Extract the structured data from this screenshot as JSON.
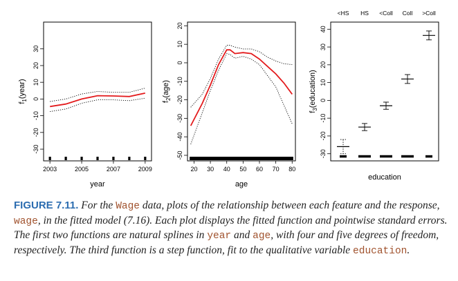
{
  "chart_data": [
    {
      "type": "line",
      "xlabel": "year",
      "ylabel": "f1(year)",
      "ylabel_parts": {
        "pre": "f",
        "sub": "1",
        "post": "(year)"
      },
      "xlim": [
        2002.6,
        2009.4
      ],
      "ylim": [
        -37,
        46
      ],
      "xticks": [
        2003,
        2005,
        2007,
        2009
      ],
      "yticks": [
        -30,
        -20,
        -10,
        0,
        10,
        20,
        30
      ],
      "colors": {
        "fit": "#e31a1c",
        "se": "#000000"
      },
      "series": [
        {
          "role": "fit",
          "x": [
            2003,
            2004,
            2005,
            2006,
            2007,
            2008,
            2009
          ],
          "values": [
            -4.5,
            -3.0,
            0.0,
            2.0,
            1.8,
            1.5,
            3.5
          ]
        },
        {
          "role": "upper-se",
          "x": [
            2003,
            2004,
            2005,
            2006,
            2007,
            2008,
            2009
          ],
          "values": [
            -1.5,
            0.0,
            3.0,
            4.5,
            4.0,
            4.0,
            6.5
          ]
        },
        {
          "role": "lower-se",
          "x": [
            2003,
            2004,
            2005,
            2006,
            2007,
            2008,
            2009
          ],
          "values": [
            -7.5,
            -6.0,
            -2.5,
            -0.5,
            -0.5,
            -1.0,
            0.5
          ]
        }
      ],
      "rug_x": [
        2003,
        2004,
        2005,
        2006,
        2007,
        2008,
        2009
      ]
    },
    {
      "type": "line",
      "xlabel": "age",
      "ylabel": "f2(age)",
      "ylabel_parts": {
        "pre": "f",
        "sub": "2",
        "post": "(age)"
      },
      "xlim": [
        16,
        82
      ],
      "ylim": [
        -53,
        22
      ],
      "xticks": [
        20,
        30,
        40,
        50,
        60,
        70,
        80
      ],
      "yticks": [
        -50,
        -40,
        -30,
        -20,
        -10,
        0,
        10,
        20
      ],
      "colors": {
        "fit": "#e31a1c",
        "se": "#000000"
      },
      "series": [
        {
          "role": "fit",
          "x": [
            18,
            25,
            30,
            35,
            40,
            42,
            45,
            50,
            55,
            60,
            65,
            70,
            75,
            80
          ],
          "values": [
            -34,
            -22,
            -12,
            -1,
            7,
            7,
            5,
            5.5,
            5,
            2,
            -2,
            -6,
            -11,
            -17
          ]
        },
        {
          "role": "upper-se",
          "x": [
            18,
            25,
            30,
            35,
            40,
            42,
            45,
            50,
            55,
            60,
            65,
            70,
            75,
            80
          ],
          "values": [
            -24,
            -17,
            -8.5,
            2,
            9.5,
            9.5,
            8.5,
            7.5,
            7.5,
            6,
            3,
            1,
            -0.5,
            -1
          ]
        },
        {
          "role": "lower-se",
          "x": [
            18,
            25,
            30,
            35,
            40,
            42,
            45,
            50,
            55,
            60,
            65,
            70,
            75,
            80
          ],
          "values": [
            -44,
            -27,
            -15,
            -4,
            5,
            4.5,
            2.5,
            3.5,
            2,
            -1,
            -7,
            -13,
            -23,
            -33
          ]
        }
      ],
      "rug_x": [
        18,
        19,
        20,
        21,
        22,
        23,
        24,
        25,
        26,
        27,
        28,
        29,
        30,
        31,
        32,
        33,
        34,
        35,
        36,
        37,
        38,
        39,
        40,
        41,
        42,
        43,
        44,
        45,
        46,
        47,
        48,
        49,
        50,
        51,
        52,
        53,
        54,
        55,
        56,
        57,
        58,
        59,
        60,
        61,
        62,
        63,
        64,
        65,
        66,
        67,
        68,
        69,
        70,
        71,
        72,
        73,
        74,
        75,
        76,
        77,
        78,
        79,
        80
      ]
    },
    {
      "type": "step",
      "xlabel": "education",
      "ylabel": "f3(education)",
      "ylabel_parts": {
        "pre": "f",
        "sub": "3",
        "post": "(education)"
      },
      "categories": [
        "<HS",
        "HS",
        "<Coll",
        "Coll",
        ">Coll"
      ],
      "ylim": [
        -34,
        44
      ],
      "yticks": [
        -30,
        -20,
        -10,
        0,
        10,
        20,
        30,
        40
      ],
      "fit": [
        -26,
        -15,
        -3,
        12,
        36.5
      ],
      "upper_se": [
        -22,
        -13,
        -1,
        14.5,
        39
      ],
      "lower_se": [
        -30,
        -17,
        -5,
        9.5,
        34
      ],
      "dashed_se": [
        true,
        false,
        false,
        false,
        false
      ],
      "rug_y": -31.5
    }
  ],
  "caption": {
    "label": "FIGURE 7.11.",
    "segments": [
      {
        "text": " For the ",
        "code": false
      },
      {
        "text": "Wage",
        "code": true
      },
      {
        "text": " data, plots of the relationship between each feature and the response, ",
        "code": false
      },
      {
        "text": "wage",
        "code": true
      },
      {
        "text": ", in the fitted model (7.16). Each plot displays the fitted function and pointwise standard errors. The first two functions are natural splines in ",
        "code": false
      },
      {
        "text": "year",
        "code": true
      },
      {
        "text": " and ",
        "code": false
      },
      {
        "text": "age",
        "code": true
      },
      {
        "text": ", with four and five degrees of freedom, respectively. The third function is a step function, fit to the qualitative variable ",
        "code": false
      },
      {
        "text": "education",
        "code": true
      },
      {
        "text": ".",
        "code": false
      }
    ]
  }
}
